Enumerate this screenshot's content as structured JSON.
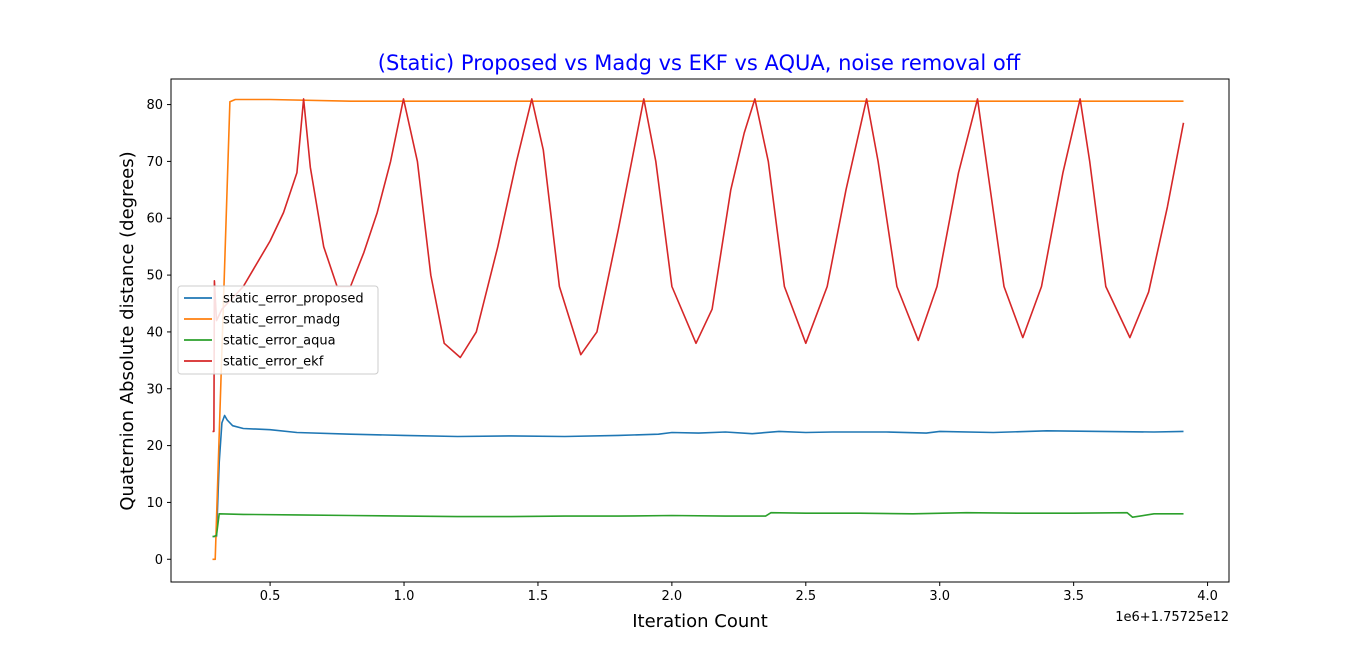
{
  "chart_data": {
    "type": "line",
    "title": "(Static) Proposed vs Madg vs EKF vs AQUA, noise removal off",
    "title_color": "#0000ff",
    "xlabel": "Iteration Count",
    "ylabel": "Quaternion Absolute distance (degrees)",
    "x_offset_label": "1e6+1.75725e12",
    "xlim": [
      0.13,
      4.08
    ],
    "ylim": [
      -4.0,
      84.5
    ],
    "xticks": [
      0.5,
      1.0,
      1.5,
      2.0,
      2.5,
      3.0,
      3.5,
      4.0
    ],
    "xtick_labels": [
      "0.5",
      "1.0",
      "1.5",
      "2.0",
      "2.5",
      "3.0",
      "3.5",
      "4.0"
    ],
    "yticks": [
      0,
      10,
      20,
      30,
      40,
      50,
      60,
      70,
      80
    ],
    "ytick_labels": [
      "0",
      "10",
      "20",
      "30",
      "40",
      "50",
      "60",
      "70",
      "80"
    ],
    "grid": false,
    "legend_position": "center-left",
    "series": [
      {
        "name": "static_error_proposed",
        "color": "#1f77b4",
        "x": [
          0.285,
          0.3,
          0.31,
          0.32,
          0.33,
          0.34,
          0.36,
          0.4,
          0.5,
          0.6,
          0.8,
          1.0,
          1.2,
          1.4,
          1.6,
          1.8,
          1.95,
          2.0,
          2.1,
          2.2,
          2.3,
          2.4,
          2.5,
          2.6,
          2.8,
          2.95,
          3.0,
          3.2,
          3.4,
          3.6,
          3.8,
          3.91
        ],
        "y": [
          4.0,
          4.0,
          17.0,
          24.0,
          25.3,
          24.5,
          23.5,
          23.0,
          22.8,
          22.3,
          22.0,
          21.8,
          21.6,
          21.7,
          21.6,
          21.8,
          22.0,
          22.3,
          22.2,
          22.4,
          22.1,
          22.5,
          22.3,
          22.4,
          22.4,
          22.2,
          22.5,
          22.3,
          22.6,
          22.5,
          22.4,
          22.5
        ]
      },
      {
        "name": "static_error_madg",
        "color": "#ff7f0e",
        "x": [
          0.285,
          0.295,
          0.35,
          0.37,
          0.5,
          0.8,
          1.0,
          1.5,
          2.0,
          2.5,
          3.0,
          3.5,
          3.91
        ],
        "y": [
          0.0,
          0.0,
          80.5,
          80.9,
          80.9,
          80.6,
          80.6,
          80.6,
          80.6,
          80.6,
          80.6,
          80.6,
          80.6
        ]
      },
      {
        "name": "static_error_aqua",
        "color": "#2ca02c",
        "x": [
          0.285,
          0.29,
          0.3,
          0.31,
          0.4,
          0.6,
          0.8,
          1.0,
          1.2,
          1.4,
          1.6,
          1.8,
          2.0,
          2.2,
          2.35,
          2.37,
          2.5,
          2.7,
          2.9,
          3.1,
          3.3,
          3.5,
          3.7,
          3.72,
          3.8,
          3.91
        ],
        "y": [
          4.0,
          4.0,
          4.2,
          8.0,
          7.9,
          7.8,
          7.7,
          7.6,
          7.5,
          7.5,
          7.6,
          7.6,
          7.7,
          7.6,
          7.6,
          8.2,
          8.1,
          8.1,
          8.0,
          8.2,
          8.1,
          8.1,
          8.2,
          7.4,
          8.0,
          8.0
        ]
      },
      {
        "name": "static_error_ekf",
        "color": "#d62728",
        "x": [
          0.285,
          0.29,
          0.292,
          0.3,
          0.32,
          0.4,
          0.5,
          0.55,
          0.6,
          0.625,
          0.65,
          0.7,
          0.75,
          0.8,
          0.85,
          0.9,
          0.95,
          0.998,
          1.05,
          1.1,
          1.15,
          1.21,
          1.27,
          1.35,
          1.42,
          1.477,
          1.52,
          1.58,
          1.66,
          1.72,
          1.8,
          1.85,
          1.895,
          1.94,
          2.0,
          2.09,
          2.15,
          2.22,
          2.27,
          2.31,
          2.36,
          2.42,
          2.5,
          2.58,
          2.65,
          2.727,
          2.77,
          2.84,
          2.92,
          2.99,
          3.07,
          3.141,
          3.18,
          3.24,
          3.31,
          3.38,
          3.46,
          3.524,
          3.56,
          3.62,
          3.71,
          3.78,
          3.85,
          3.91
        ],
        "y": [
          22.5,
          22.5,
          49.0,
          42.0,
          44.0,
          48.0,
          56.0,
          61.0,
          68.0,
          81.0,
          69.0,
          55.0,
          48.0,
          48.0,
          54.0,
          61.0,
          70.0,
          81.0,
          70.0,
          50.0,
          38.0,
          35.5,
          40.0,
          55.0,
          70.0,
          81.0,
          72.0,
          48.0,
          36.0,
          40.0,
          58.0,
          70.0,
          81.0,
          70.0,
          48.0,
          38.0,
          44.0,
          65.0,
          75.0,
          81.0,
          70.0,
          48.0,
          38.0,
          48.0,
          65.0,
          81.0,
          70.0,
          48.0,
          38.5,
          48.0,
          68.0,
          81.0,
          68.0,
          48.0,
          39.0,
          48.0,
          68.0,
          81.0,
          70.0,
          48.0,
          39.0,
          47.0,
          62.0,
          76.8
        ]
      }
    ]
  }
}
